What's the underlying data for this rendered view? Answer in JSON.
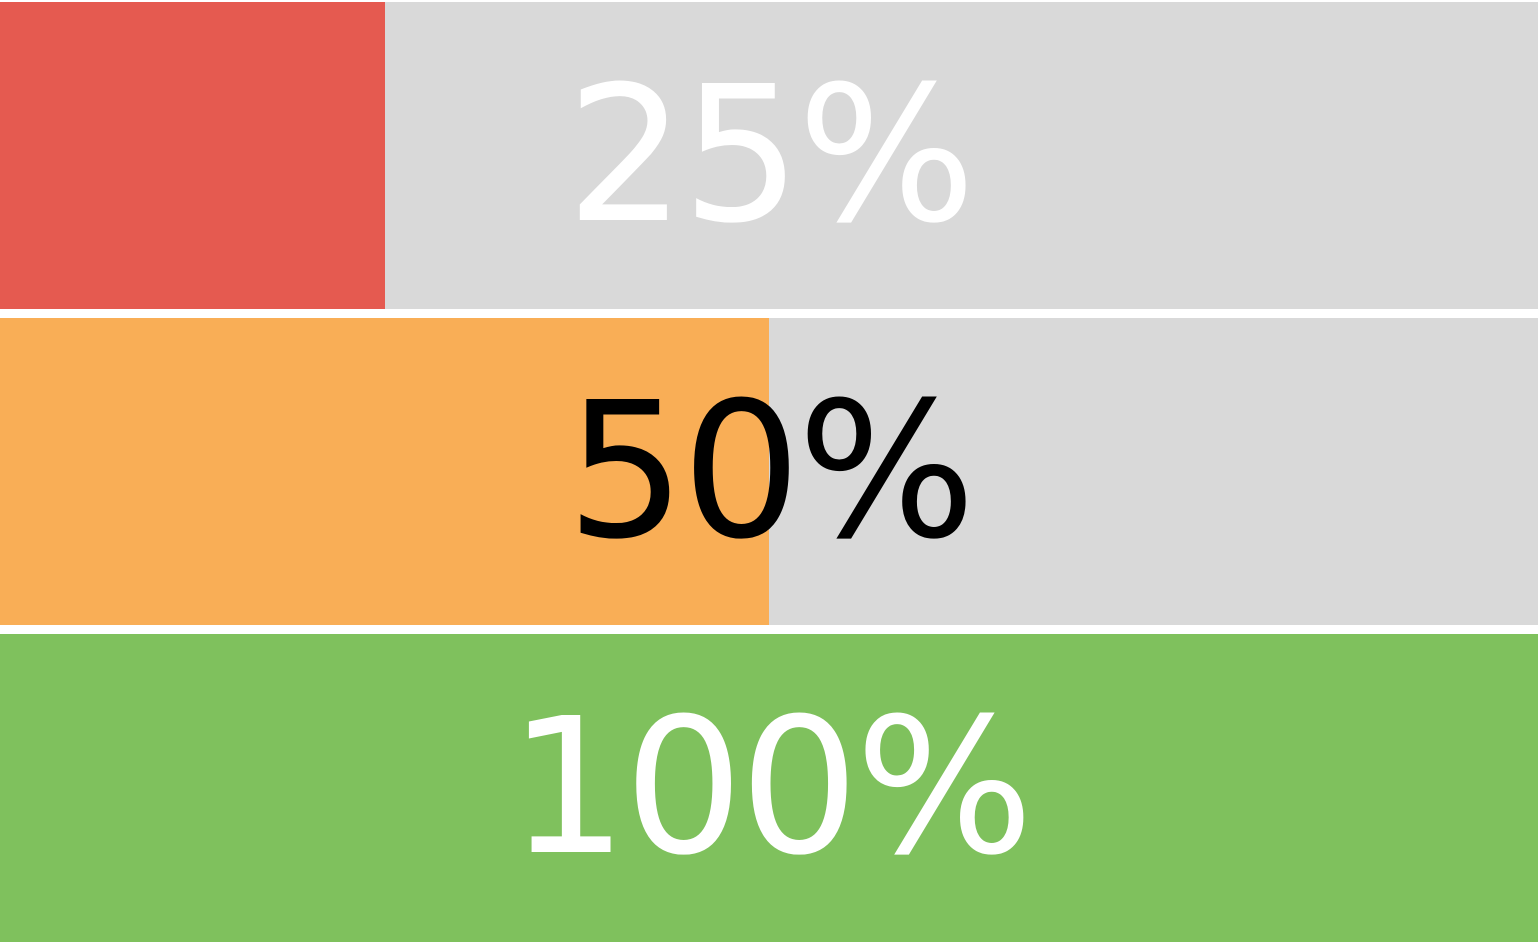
{
  "track_color": "#d9d9d9",
  "bars": [
    {
      "label": "25%",
      "value": 0.25,
      "color": "#e55a50",
      "text_color": "#ffffff"
    },
    {
      "label": "50%",
      "value": 0.5,
      "color": "#f9ae56",
      "text_color": "#000000"
    },
    {
      "label": "100%",
      "value": 1.0,
      "color": "#7fc15d",
      "text_color": "#ffffff"
    }
  ]
}
